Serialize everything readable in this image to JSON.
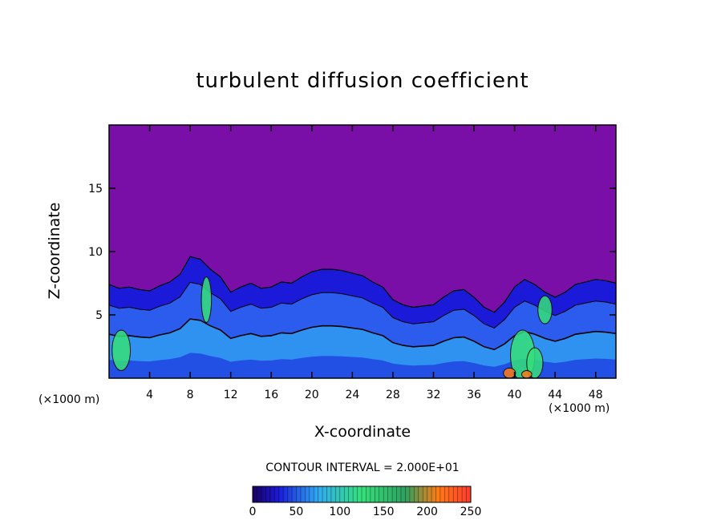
{
  "colors": {
    "background": "#ffffff",
    "sky": "#7a0fa8",
    "deep_blue": "#1a1ad8",
    "mid_blue": "#2f64f0",
    "cyan": "#31aaf2",
    "green": "#35e07a",
    "orange": "#ff7a14",
    "contour": "#000000"
  },
  "colorbar": {
    "label": "CONTOUR INTERVAL = 2.000E+01",
    "tick_labels": [
      "0",
      "50",
      "100",
      "150",
      "200",
      "250"
    ],
    "range": [
      0,
      250
    ]
  },
  "chart_data": {
    "type": "heatmap",
    "title": "turbulent diffusion coefficient",
    "xlabel": "X-coordinate",
    "ylabel": "Z-coordinate",
    "x_unit": "(×1000 m)",
    "x_unit_right": "(×1000 m)",
    "xlim": [
      0,
      50
    ],
    "ylim": [
      0,
      20
    ],
    "x_ticks": [
      4,
      8,
      12,
      16,
      20,
      24,
      28,
      32,
      36,
      40,
      44,
      48
    ],
    "y_ticks": [
      5,
      10,
      15
    ],
    "contour_interval": 20,
    "turbulent_layer_top": {
      "x": [
        0,
        1,
        2,
        3,
        4,
        5,
        6,
        7,
        8,
        9,
        10,
        11,
        12,
        13,
        14,
        15,
        16,
        17,
        18,
        19,
        20,
        21,
        22,
        23,
        24,
        25,
        26,
        27,
        28,
        29,
        30,
        31,
        32,
        33,
        34,
        35,
        36,
        37,
        38,
        39,
        40,
        41,
        42,
        43,
        44,
        45,
        46,
        47,
        48,
        49,
        50
      ],
      "z": [
        7.4,
        7.1,
        7.2,
        7.0,
        6.9,
        7.3,
        7.6,
        8.2,
        9.6,
        9.4,
        8.6,
        8.0,
        6.8,
        7.2,
        7.5,
        7.1,
        7.2,
        7.6,
        7.5,
        8.0,
        8.4,
        8.6,
        8.6,
        8.5,
        8.3,
        8.1,
        7.6,
        7.2,
        6.2,
        5.8,
        5.6,
        5.7,
        5.8,
        6.4,
        6.9,
        7.0,
        6.4,
        5.6,
        5.2,
        6.0,
        7.2,
        7.8,
        7.4,
        6.8,
        6.4,
        6.8,
        7.4,
        7.6,
        7.8,
        7.7,
        7.5
      ]
    }
  }
}
